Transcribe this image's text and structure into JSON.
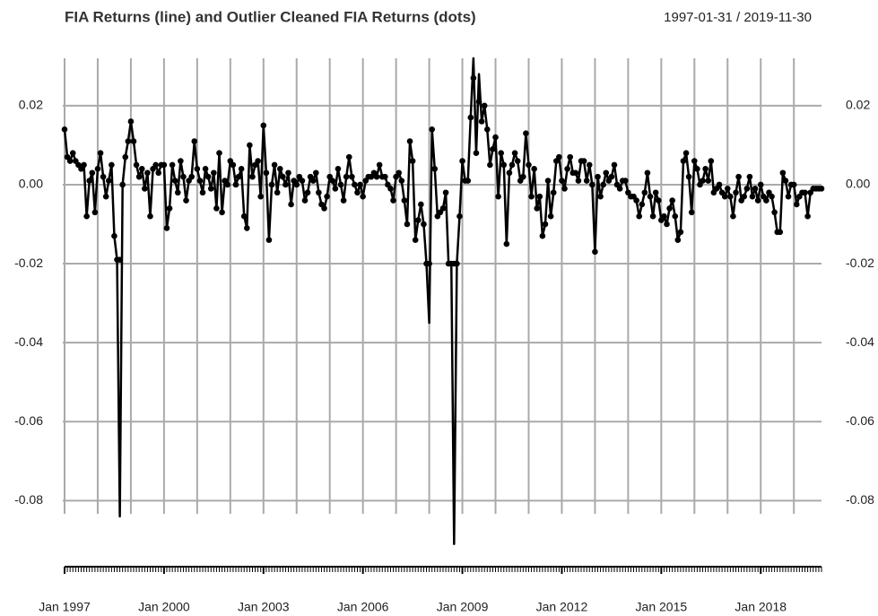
{
  "chart_data": {
    "type": "line",
    "title": "FIA Returns (line) and Outlier Cleaned FIA Returns (dots)",
    "subtitle": "1997-01-31 / 2019-11-30",
    "x": [
      "1997-01",
      "1997-02",
      "1997-03",
      "1997-04",
      "1997-05",
      "1997-06",
      "1997-07",
      "1997-08",
      "1997-09",
      "1997-10",
      "1997-11",
      "1997-12",
      "1998-01",
      "1998-02",
      "1998-03",
      "1998-04",
      "1998-05",
      "1998-06",
      "1998-07",
      "1998-08",
      "1998-09",
      "1998-10",
      "1998-11",
      "1998-12",
      "1999-01",
      "1999-02",
      "1999-03",
      "1999-04",
      "1999-05",
      "1999-06",
      "1999-07",
      "1999-08",
      "1999-09",
      "1999-10",
      "1999-11",
      "1999-12",
      "2000-01",
      "2000-02",
      "2000-03",
      "2000-04",
      "2000-05",
      "2000-06",
      "2000-07",
      "2000-08",
      "2000-09",
      "2000-10",
      "2000-11",
      "2000-12",
      "2001-01",
      "2001-02",
      "2001-03",
      "2001-04",
      "2001-05",
      "2001-06",
      "2001-07",
      "2001-08",
      "2001-09",
      "2001-10",
      "2001-11",
      "2001-12",
      "2002-01",
      "2002-02",
      "2002-03",
      "2002-04",
      "2002-05",
      "2002-06",
      "2002-07",
      "2002-08",
      "2002-09",
      "2002-10",
      "2002-11",
      "2002-12",
      "2003-01",
      "2003-02",
      "2003-03",
      "2003-04",
      "2003-05",
      "2003-06",
      "2003-07",
      "2003-08",
      "2003-09",
      "2003-10",
      "2003-11",
      "2003-12",
      "2004-01",
      "2004-02",
      "2004-03",
      "2004-04",
      "2004-05",
      "2004-06",
      "2004-07",
      "2004-08",
      "2004-09",
      "2004-10",
      "2004-11",
      "2004-12",
      "2005-01",
      "2005-02",
      "2005-03",
      "2005-04",
      "2005-05",
      "2005-06",
      "2005-07",
      "2005-08",
      "2005-09",
      "2005-10",
      "2005-11",
      "2005-12",
      "2006-01",
      "2006-02",
      "2006-03",
      "2006-04",
      "2006-05",
      "2006-06",
      "2006-07",
      "2006-08",
      "2006-09",
      "2006-10",
      "2006-11",
      "2006-12",
      "2007-01",
      "2007-02",
      "2007-03",
      "2007-04",
      "2007-05",
      "2007-06",
      "2007-07",
      "2007-08",
      "2007-09",
      "2007-10",
      "2007-11",
      "2007-12",
      "2008-01",
      "2008-02",
      "2008-03",
      "2008-04",
      "2008-05",
      "2008-06",
      "2008-07",
      "2008-08",
      "2008-09",
      "2008-10",
      "2008-11",
      "2008-12",
      "2009-01",
      "2009-02",
      "2009-03",
      "2009-04",
      "2009-05",
      "2009-06",
      "2009-07",
      "2009-08",
      "2009-09",
      "2009-10",
      "2009-11",
      "2009-12",
      "2010-01",
      "2010-02",
      "2010-03",
      "2010-04",
      "2010-05",
      "2010-06",
      "2010-07",
      "2010-08",
      "2010-09",
      "2010-10",
      "2010-11",
      "2010-12",
      "2011-01",
      "2011-02",
      "2011-03",
      "2011-04",
      "2011-05",
      "2011-06",
      "2011-07",
      "2011-08",
      "2011-09",
      "2011-10",
      "2011-11",
      "2011-12",
      "2012-01",
      "2012-02",
      "2012-03",
      "2012-04",
      "2012-05",
      "2012-06",
      "2012-07",
      "2012-08",
      "2012-09",
      "2012-10",
      "2012-11",
      "2012-12",
      "2013-01",
      "2013-02",
      "2013-03",
      "2013-04",
      "2013-05",
      "2013-06",
      "2013-07",
      "2013-08",
      "2013-09",
      "2013-10",
      "2013-11",
      "2013-12",
      "2014-01",
      "2014-02",
      "2014-03",
      "2014-04",
      "2014-05",
      "2014-06",
      "2014-07",
      "2014-08",
      "2014-09",
      "2014-10",
      "2014-11",
      "2014-12",
      "2015-01",
      "2015-02",
      "2015-03",
      "2015-04",
      "2015-05",
      "2015-06",
      "2015-07",
      "2015-08",
      "2015-09",
      "2015-10",
      "2015-11",
      "2015-12",
      "2016-01",
      "2016-02",
      "2016-03",
      "2016-04",
      "2016-05",
      "2016-06",
      "2016-07",
      "2016-08",
      "2016-09",
      "2016-10",
      "2016-11",
      "2016-12",
      "2017-01",
      "2017-02",
      "2017-03",
      "2017-04",
      "2017-05",
      "2017-06",
      "2017-07",
      "2017-08",
      "2017-09",
      "2017-10",
      "2017-11",
      "2017-12",
      "2018-01",
      "2018-02",
      "2018-03",
      "2018-04",
      "2018-05",
      "2018-06",
      "2018-07",
      "2018-08",
      "2018-09",
      "2018-10",
      "2018-11",
      "2018-12",
      "2019-01",
      "2019-02",
      "2019-03",
      "2019-04",
      "2019-05",
      "2019-06",
      "2019-07",
      "2019-08",
      "2019-09",
      "2019-10",
      "2019-11"
    ],
    "series": [
      {
        "mark": "line",
        "color": "#000000",
        "values": [
          0.014,
          0.007,
          0.006,
          0.008,
          0.006,
          0.005,
          0.004,
          0.005,
          -0.008,
          0.001,
          0.003,
          -0.007,
          0.004,
          0.008,
          0.002,
          -0.003,
          0.001,
          0.005,
          -0.013,
          -0.019,
          -0.084,
          0.0,
          0.007,
          0.011,
          0.016,
          0.011,
          0.005,
          0.002,
          0.004,
          -0.001,
          0.003,
          -0.008,
          0.004,
          0.005,
          0.003,
          0.005,
          0.005,
          -0.011,
          -0.006,
          0.005,
          0.001,
          -0.002,
          0.006,
          0.002,
          -0.004,
          0.001,
          0.002,
          0.011,
          0.004,
          0.001,
          -0.002,
          0.004,
          0.002,
          -0.001,
          0.003,
          -0.006,
          0.008,
          -0.007,
          0.001,
          0.0,
          0.006,
          0.005,
          0.0,
          0.002,
          0.004,
          -0.008,
          -0.011,
          0.01,
          0.002,
          0.005,
          0.006,
          -0.003,
          0.015,
          0.003,
          -0.014,
          0.0,
          0.005,
          -0.002,
          0.004,
          0.002,
          0.0,
          0.003,
          -0.005,
          0.001,
          0.0,
          0.002,
          0.001,
          -0.004,
          -0.002,
          0.002,
          0.001,
          0.003,
          -0.002,
          -0.005,
          -0.006,
          -0.003,
          0.002,
          0.001,
          -0.001,
          0.004,
          0.0,
          -0.004,
          0.002,
          0.007,
          0.002,
          0.0,
          -0.002,
          0.0,
          -0.003,
          0.001,
          0.002,
          0.002,
          0.003,
          0.002,
          0.005,
          0.002,
          0.002,
          0.0,
          -0.001,
          -0.004,
          0.002,
          0.003,
          0.001,
          -0.004,
          -0.01,
          0.011,
          0.006,
          -0.014,
          -0.009,
          -0.005,
          -0.01,
          -0.02,
          -0.035,
          0.014,
          0.004,
          -0.008,
          -0.007,
          -0.006,
          -0.002,
          -0.02,
          -0.02,
          -0.091,
          -0.02,
          -0.008,
          0.006,
          0.001,
          0.001,
          0.017,
          0.032,
          0.008,
          0.028,
          0.016,
          0.02,
          0.014,
          0.005,
          0.009,
          0.012,
          -0.003,
          0.008,
          0.005,
          -0.015,
          0.003,
          0.005,
          0.008,
          0.006,
          0.001,
          0.002,
          0.013,
          0.005,
          -0.003,
          0.004,
          -0.006,
          -0.003,
          -0.013,
          -0.01,
          0.001,
          -0.008,
          -0.002,
          0.006,
          0.007,
          0.001,
          -0.001,
          0.004,
          0.007,
          0.003,
          0.003,
          0.001,
          0.006,
          0.006,
          0.001,
          0.005,
          0.0,
          -0.017,
          0.002,
          -0.003,
          0.0,
          0.003,
          0.001,
          0.002,
          0.005,
          0.0,
          -0.001,
          0.001,
          0.001,
          -0.002,
          -0.003,
          -0.003,
          -0.004,
          -0.008,
          -0.005,
          -0.002,
          0.003,
          -0.003,
          -0.008,
          -0.002,
          -0.004,
          -0.009,
          -0.008,
          -0.01,
          -0.006,
          -0.004,
          -0.008,
          -0.014,
          -0.012,
          0.006,
          0.008,
          0.002,
          -0.007,
          0.006,
          0.004,
          0.0,
          0.001,
          0.004,
          0.001,
          0.006,
          -0.002,
          -0.001,
          0.0,
          -0.002,
          -0.003,
          -0.001,
          -0.003,
          -0.008,
          -0.002,
          0.002,
          -0.004,
          -0.003,
          -0.001,
          0.002,
          -0.003,
          -0.001,
          -0.004,
          0.0,
          -0.003,
          -0.004,
          -0.002,
          -0.003,
          -0.007,
          -0.012,
          -0.012,
          0.003,
          0.001,
          -0.003,
          0.0,
          0.0,
          -0.005,
          -0.003,
          -0.002,
          -0.002,
          -0.008,
          -0.002,
          -0.001,
          -0.001,
          -0.001,
          -0.001
        ]
      },
      {
        "mark": "points",
        "color": "#000000",
        "values": [
          0.014,
          0.007,
          0.006,
          0.008,
          0.006,
          0.005,
          0.004,
          0.005,
          -0.008,
          0.001,
          0.003,
          -0.007,
          0.004,
          0.008,
          0.002,
          -0.003,
          0.001,
          0.005,
          -0.013,
          -0.019,
          -0.019,
          0.0,
          0.007,
          0.011,
          0.016,
          0.011,
          0.005,
          0.002,
          0.004,
          -0.001,
          0.003,
          -0.008,
          0.004,
          0.005,
          0.003,
          0.005,
          0.005,
          -0.011,
          -0.006,
          0.005,
          0.001,
          -0.002,
          0.006,
          0.002,
          -0.004,
          0.001,
          0.002,
          0.011,
          0.004,
          0.001,
          -0.002,
          0.004,
          0.002,
          -0.001,
          0.003,
          -0.006,
          0.008,
          -0.007,
          0.001,
          0.0,
          0.006,
          0.005,
          0.0,
          0.002,
          0.004,
          -0.008,
          -0.011,
          0.01,
          0.002,
          0.005,
          0.006,
          -0.003,
          0.015,
          0.003,
          -0.014,
          0.0,
          0.005,
          -0.002,
          0.004,
          0.002,
          0.0,
          0.003,
          -0.005,
          0.001,
          0.0,
          0.002,
          0.001,
          -0.004,
          -0.002,
          0.002,
          0.001,
          0.003,
          -0.002,
          -0.005,
          -0.006,
          -0.003,
          0.002,
          0.001,
          -0.001,
          0.004,
          0.0,
          -0.004,
          0.002,
          0.007,
          0.002,
          0.0,
          -0.002,
          0.0,
          -0.003,
          0.001,
          0.002,
          0.002,
          0.003,
          0.002,
          0.005,
          0.002,
          0.002,
          0.0,
          -0.001,
          -0.004,
          0.002,
          0.003,
          0.001,
          -0.004,
          -0.01,
          0.011,
          0.006,
          -0.014,
          -0.009,
          -0.005,
          -0.01,
          -0.02,
          -0.02,
          0.014,
          0.004,
          -0.008,
          -0.007,
          -0.006,
          -0.002,
          -0.02,
          -0.02,
          -0.02,
          -0.02,
          -0.008,
          0.006,
          0.001,
          0.001,
          0.017,
          0.027,
          0.008,
          0.021,
          0.016,
          0.02,
          0.014,
          0.005,
          0.009,
          0.012,
          -0.003,
          0.008,
          0.005,
          -0.015,
          0.003,
          0.005,
          0.008,
          0.006,
          0.001,
          0.002,
          0.013,
          0.005,
          -0.003,
          0.004,
          -0.006,
          -0.003,
          -0.013,
          -0.01,
          0.001,
          -0.008,
          -0.002,
          0.006,
          0.007,
          0.001,
          -0.001,
          0.004,
          0.007,
          0.003,
          0.003,
          0.001,
          0.006,
          0.006,
          0.001,
          0.005,
          0.0,
          -0.017,
          0.002,
          -0.003,
          0.0,
          0.003,
          0.001,
          0.002,
          0.005,
          0.0,
          -0.001,
          0.001,
          0.001,
          -0.002,
          -0.003,
          -0.003,
          -0.004,
          -0.008,
          -0.005,
          -0.002,
          0.003,
          -0.003,
          -0.008,
          -0.002,
          -0.004,
          -0.009,
          -0.008,
          -0.01,
          -0.006,
          -0.004,
          -0.008,
          -0.014,
          -0.012,
          0.006,
          0.008,
          0.002,
          -0.007,
          0.006,
          0.004,
          0.0,
          0.001,
          0.004,
          0.001,
          0.006,
          -0.002,
          -0.001,
          0.0,
          -0.002,
          -0.003,
          -0.001,
          -0.003,
          -0.008,
          -0.002,
          0.002,
          -0.004,
          -0.003,
          -0.001,
          0.002,
          -0.003,
          -0.001,
          -0.004,
          0.0,
          -0.003,
          -0.004,
          -0.002,
          -0.003,
          -0.007,
          -0.012,
          -0.012,
          0.003,
          0.001,
          -0.003,
          0.0,
          0.0,
          -0.005,
          -0.003,
          -0.002,
          -0.002,
          -0.008,
          -0.002,
          -0.001,
          -0.001,
          -0.001,
          -0.001
        ]
      }
    ],
    "ylim": [
      -0.094,
      0.032
    ],
    "yticks": [
      -0.08,
      -0.06,
      -0.04,
      -0.02,
      {
        "value": 0,
        "label": "0.00"
      },
      0.02
    ],
    "xticks": [
      {
        "value": "1997-01",
        "label": "Jan 1997"
      },
      {
        "value": "2000-01",
        "label": "Jan 2000"
      },
      {
        "value": "2003-01",
        "label": "Jan 2003"
      },
      {
        "value": "2006-01",
        "label": "Jan 2006"
      },
      {
        "value": "2009-01",
        "label": "Jan 2009"
      },
      {
        "value": "2012-01",
        "label": "Jan 2012"
      },
      {
        "value": "2015-01",
        "label": "Jan 2015"
      },
      {
        "value": "2018-01",
        "label": "Jan 2018"
      }
    ],
    "grid": true,
    "grid_color": "#aaaaaa"
  }
}
